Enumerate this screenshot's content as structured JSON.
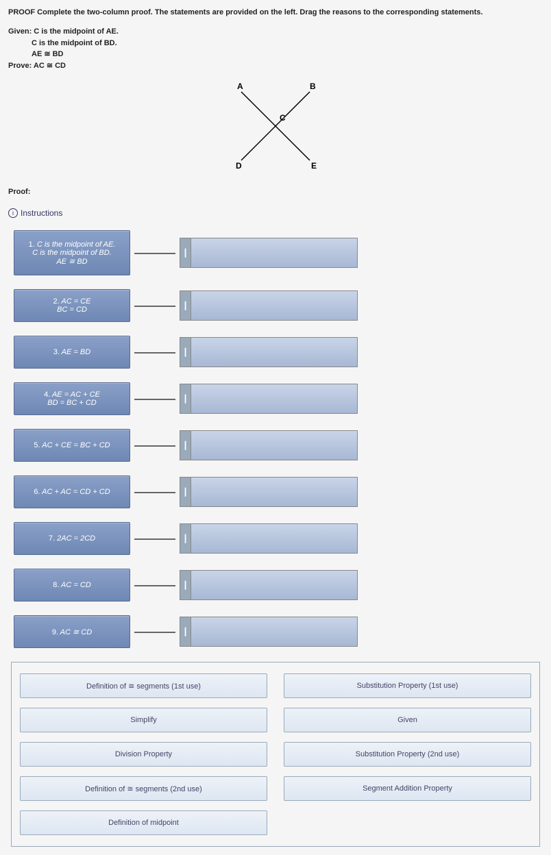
{
  "header": "PROOF Complete the two-column proof. The statements are provided on the left. Drag the reasons to the corresponding statements.",
  "given": {
    "line1": "Given: C is the midpoint of AE.",
    "line2": "C is the midpoint of BD.",
    "line3": "AE ≅ BD",
    "line4": "Prove: AC ≅ CD"
  },
  "diagram": {
    "points": {
      "A": "A",
      "B": "B",
      "C": "C",
      "D": "D",
      "E": "E"
    },
    "background_color": "#f5f5f5",
    "line_color": "#000000"
  },
  "proof_label": "Proof:",
  "instructions_label": "Instructions",
  "statements": [
    {
      "num": "1.",
      "lines": [
        "C is the midpoint of AE.",
        "C is the midpoint of BD.",
        "AE ≅ BD"
      ]
    },
    {
      "num": "2.",
      "lines": [
        "AC = CE",
        "BC = CD"
      ]
    },
    {
      "num": "3.",
      "lines": [
        "AE = BD"
      ]
    },
    {
      "num": "4.",
      "lines": [
        "AE = AC + CE",
        "BD = BC + CD"
      ]
    },
    {
      "num": "5.",
      "lines": [
        "AC + CE = BC + CD"
      ]
    },
    {
      "num": "6.",
      "lines": [
        "AC + AC = CD + CD"
      ]
    },
    {
      "num": "7.",
      "lines": [
        "2AC = 2CD"
      ]
    },
    {
      "num": "8.",
      "lines": [
        "AC = CD"
      ]
    },
    {
      "num": "9.",
      "lines": [
        "AC ≅ CD"
      ]
    }
  ],
  "reasons_pool": [
    "Definition of ≅ segments (1st use)",
    "Substitution Property (1st use)",
    "Simplify",
    "Given",
    "Division Property",
    "Substitution Property (2nd use)",
    "Definition of ≅ segments (2nd use)",
    "Segment Addition Property",
    "Definition of midpoint"
  ],
  "colors": {
    "stmt_bg_top": "#8aa0c8",
    "stmt_bg_bottom": "#6e88b4",
    "slot_bg_top": "#c8d4e8",
    "slot_bg_bottom": "#a8b8d4",
    "pool_border": "#99aabb"
  }
}
